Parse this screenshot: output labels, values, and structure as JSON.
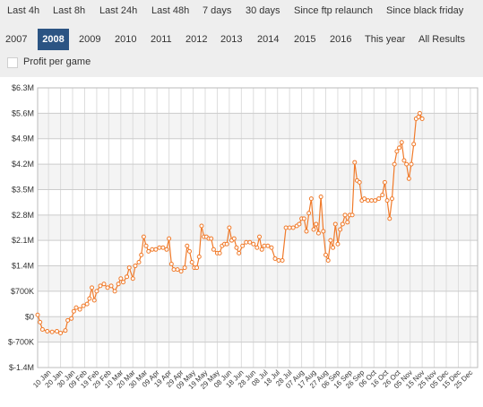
{
  "range_tabs": [
    {
      "label": "Last 4h"
    },
    {
      "label": "Last 8h"
    },
    {
      "label": "Last 24h"
    },
    {
      "label": "Last 48h"
    },
    {
      "label": "7 days"
    },
    {
      "label": "30 days"
    },
    {
      "label": "Since ftp relaunch"
    },
    {
      "label": "Since black friday"
    }
  ],
  "year_tabs": [
    {
      "label": "2007"
    },
    {
      "label": "2008",
      "active": true
    },
    {
      "label": "2009"
    },
    {
      "label": "2010"
    },
    {
      "label": "2011"
    },
    {
      "label": "2012"
    },
    {
      "label": "2013"
    },
    {
      "label": "2014"
    },
    {
      "label": "2015"
    },
    {
      "label": "2016"
    },
    {
      "label": "This year"
    },
    {
      "label": "All Results"
    }
  ],
  "profit_toggle": {
    "label": "Profit per game",
    "checked": false
  },
  "colors": {
    "accent": "#2b5483",
    "line": "#f07a2a",
    "band": "#f4f4f4",
    "grid": "#cccccc"
  },
  "chart_data": {
    "type": "line",
    "title": "",
    "xlabel": "",
    "ylabel": "",
    "ylim": [
      -1400000,
      6300000
    ],
    "y_ticks": [
      {
        "value": -1400000,
        "label": "$-1.4M"
      },
      {
        "value": -700000,
        "label": "$-700K"
      },
      {
        "value": 0,
        "label": "$0"
      },
      {
        "value": 700000,
        "label": "$700K"
      },
      {
        "value": 1400000,
        "label": "$1.4M"
      },
      {
        "value": 2100000,
        "label": "$2.1M"
      },
      {
        "value": 2800000,
        "label": "$2.8M"
      },
      {
        "value": 3500000,
        "label": "$3.5M"
      },
      {
        "value": 4200000,
        "label": "$4.2M"
      },
      {
        "value": 4900000,
        "label": "$4.9M"
      },
      {
        "value": 5600000,
        "label": "$5.6M"
      },
      {
        "value": 6300000,
        "label": "$6.3M"
      }
    ],
    "x_labels": [
      "10 Jan",
      "20 Jan",
      "30 Jan",
      "09 Feb",
      "19 Feb",
      "29 Feb",
      "10 Mar",
      "20 Mar",
      "30 Mar",
      "09 Apr",
      "19 Apr",
      "29 Apr",
      "09 May",
      "19 May",
      "29 May",
      "08 Jun",
      "18 Jun",
      "28 Jun",
      "08 Jul",
      "18 Jul",
      "28 Jul",
      "07 Aug",
      "17 Aug",
      "27 Aug",
      "06 Sep",
      "16 Sep",
      "26 Sep",
      "06 Oct",
      "16 Oct",
      "26 Oct",
      "05 Nov",
      "15 Nov",
      "25 Nov",
      "05 Dec",
      "15 Dec",
      "25 Dec"
    ],
    "x_day_range": [
      1,
      366
    ],
    "grid": true,
    "legend": "none",
    "series": [
      {
        "points": [
          [
            1,
            50000
          ],
          [
            3,
            -150000
          ],
          [
            5,
            -350000
          ],
          [
            9,
            -400000
          ],
          [
            13,
            -420000
          ],
          [
            17,
            -400000
          ],
          [
            20,
            -450000
          ],
          [
            24,
            -380000
          ],
          [
            26,
            -100000
          ],
          [
            29,
            -50000
          ],
          [
            31,
            150000
          ],
          [
            33,
            250000
          ],
          [
            36,
            200000
          ],
          [
            39,
            300000
          ],
          [
            42,
            350000
          ],
          [
            44,
            500000
          ],
          [
            46,
            800000
          ],
          [
            48,
            450000
          ],
          [
            50,
            700000
          ],
          [
            53,
            850000
          ],
          [
            56,
            900000
          ],
          [
            59,
            800000
          ],
          [
            62,
            850000
          ],
          [
            65,
            700000
          ],
          [
            68,
            900000
          ],
          [
            70,
            1050000
          ],
          [
            72,
            950000
          ],
          [
            75,
            1100000
          ],
          [
            77,
            1350000
          ],
          [
            80,
            1050000
          ],
          [
            82,
            1400000
          ],
          [
            85,
            1500000
          ],
          [
            87,
            1700000
          ],
          [
            89,
            2200000
          ],
          [
            91,
            1950000
          ],
          [
            93,
            1800000
          ],
          [
            96,
            1850000
          ],
          [
            99,
            1850000
          ],
          [
            102,
            1900000
          ],
          [
            105,
            1900000
          ],
          [
            108,
            1850000
          ],
          [
            110,
            2150000
          ],
          [
            112,
            1450000
          ],
          [
            114,
            1300000
          ],
          [
            117,
            1300000
          ],
          [
            120,
            1250000
          ],
          [
            123,
            1350000
          ],
          [
            125,
            1950000
          ],
          [
            127,
            1800000
          ],
          [
            129,
            1500000
          ],
          [
            131,
            1350000
          ],
          [
            133,
            1350000
          ],
          [
            135,
            1650000
          ],
          [
            137,
            2500000
          ],
          [
            139,
            2200000
          ],
          [
            141,
            2200000
          ],
          [
            143,
            2150000
          ],
          [
            145,
            2150000
          ],
          [
            147,
            1850000
          ],
          [
            150,
            1750000
          ],
          [
            152,
            1750000
          ],
          [
            154,
            1950000
          ],
          [
            156,
            2000000
          ],
          [
            158,
            2000000
          ],
          [
            160,
            2450000
          ],
          [
            162,
            2100000
          ],
          [
            164,
            2150000
          ],
          [
            166,
            1900000
          ],
          [
            168,
            1750000
          ],
          [
            171,
            1950000
          ],
          [
            174,
            2050000
          ],
          [
            177,
            2050000
          ],
          [
            180,
            2000000
          ],
          [
            183,
            1900000
          ],
          [
            185,
            2200000
          ],
          [
            187,
            1850000
          ],
          [
            189,
            1950000
          ],
          [
            192,
            1950000
          ],
          [
            195,
            1900000
          ],
          [
            198,
            1600000
          ],
          [
            201,
            1550000
          ],
          [
            204,
            1550000
          ],
          [
            207,
            2450000
          ],
          [
            210,
            2450000
          ],
          [
            213,
            2450000
          ],
          [
            216,
            2500000
          ],
          [
            218,
            2550000
          ],
          [
            220,
            2700000
          ],
          [
            222,
            2700000
          ],
          [
            224,
            2350000
          ],
          [
            226,
            2850000
          ],
          [
            228,
            3250000
          ],
          [
            230,
            2400000
          ],
          [
            232,
            2550000
          ],
          [
            234,
            2300000
          ],
          [
            236,
            3300000
          ],
          [
            238,
            2350000
          ],
          [
            240,
            1700000
          ],
          [
            242,
            1550000
          ],
          [
            244,
            2100000
          ],
          [
            246,
            1900000
          ],
          [
            248,
            2550000
          ],
          [
            250,
            2000000
          ],
          [
            252,
            2400000
          ],
          [
            254,
            2550000
          ],
          [
            256,
            2800000
          ],
          [
            258,
            2600000
          ],
          [
            260,
            2800000
          ],
          [
            262,
            2800000
          ],
          [
            264,
            4250000
          ],
          [
            266,
            3750000
          ],
          [
            268,
            3700000
          ],
          [
            270,
            3200000
          ],
          [
            272,
            3250000
          ],
          [
            275,
            3200000
          ],
          [
            278,
            3200000
          ],
          [
            281,
            3200000
          ],
          [
            284,
            3250000
          ],
          [
            287,
            3350000
          ],
          [
            289,
            3700000
          ],
          [
            291,
            3200000
          ],
          [
            293,
            2700000
          ],
          [
            295,
            3250000
          ],
          [
            297,
            4200000
          ],
          [
            299,
            4550000
          ],
          [
            301,
            4650000
          ],
          [
            303,
            4800000
          ],
          [
            305,
            4300000
          ],
          [
            307,
            4200000
          ],
          [
            309,
            3800000
          ],
          [
            311,
            4200000
          ],
          [
            313,
            4750000
          ],
          [
            315,
            5450000
          ],
          [
            317,
            5500000
          ],
          [
            318,
            5600000
          ],
          [
            320,
            5450000
          ]
        ]
      }
    ]
  }
}
